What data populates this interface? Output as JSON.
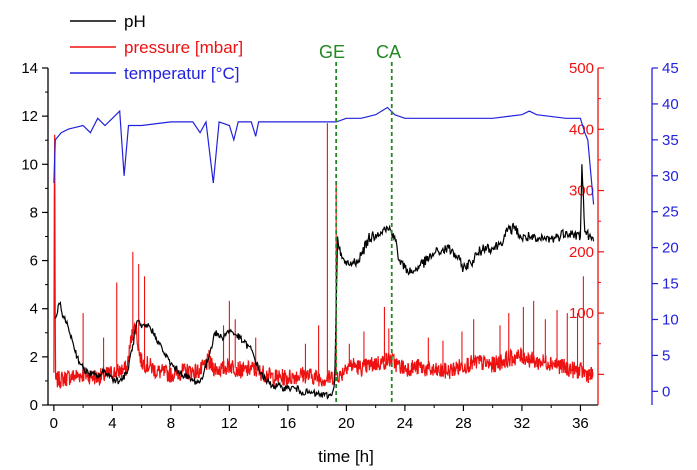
{
  "chart_data": {
    "type": "line",
    "xlabel": "time [h]",
    "xlim": [
      -0.4,
      37.2
    ],
    "x_ticks": [
      "0",
      "4",
      "8",
      "12",
      "16",
      "20",
      "24",
      "28",
      "32",
      "36"
    ],
    "axes": {
      "left": {
        "series": "pH",
        "range": [
          0,
          14
        ],
        "ticks": [
          "0",
          "2",
          "4",
          "6",
          "8",
          "10",
          "12",
          "14"
        ],
        "color": "#000000"
      },
      "right1": {
        "series": "pressure [mbar]",
        "range": [
          -50,
          500
        ],
        "ticks": [
          "0",
          "100",
          "200",
          "300",
          "400",
          "500"
        ],
        "color": "#ee1111"
      },
      "right2": {
        "series": "temperatur [°C]",
        "range": [
          -1.9,
          45
        ],
        "ticks": [
          "0",
          "5",
          "10",
          "15",
          "20",
          "25",
          "30",
          "35",
          "40",
          "45"
        ],
        "color": "#2222dd"
      }
    },
    "legend": {
      "position": "top-left",
      "entries": [
        {
          "label": "pH",
          "color": "#000000"
        },
        {
          "label": "pressure [mbar]",
          "color": "#ee1111"
        },
        {
          "label": "temperatur [°C]",
          "color": "#2222dd"
        }
      ]
    },
    "annotations": [
      {
        "label": "GE",
        "x": 19.3,
        "color": "#228822",
        "style": "dashed-vertical"
      },
      {
        "label": "CA",
        "x": 23.1,
        "color": "#228822",
        "style": "dashed-vertical"
      }
    ],
    "series": [
      {
        "name": "pH",
        "axis": "left",
        "color": "#000000",
        "points": [
          [
            0.1,
            3.6
          ],
          [
            0.4,
            4.2
          ],
          [
            0.7,
            3.6
          ],
          [
            1.0,
            3.2
          ],
          [
            1.3,
            2.6
          ],
          [
            1.6,
            2.0
          ],
          [
            2.0,
            1.5
          ],
          [
            2.4,
            1.3
          ],
          [
            3.0,
            1.2
          ],
          [
            3.5,
            1.4
          ],
          [
            4.0,
            1.1
          ],
          [
            4.5,
            1.0
          ],
          [
            5.0,
            1.3
          ],
          [
            5.4,
            2.5
          ],
          [
            5.7,
            3.5
          ],
          [
            6.0,
            3.2
          ],
          [
            6.5,
            3.3
          ],
          [
            7.0,
            2.8
          ],
          [
            7.5,
            2.2
          ],
          [
            8.0,
            1.7
          ],
          [
            8.5,
            1.4
          ],
          [
            9.0,
            1.2
          ],
          [
            9.5,
            1.0
          ],
          [
            10.0,
            0.95
          ],
          [
            10.5,
            1.8
          ],
          [
            11.0,
            3.0
          ],
          [
            11.5,
            2.8
          ],
          [
            12.0,
            3.1
          ],
          [
            12.5,
            2.9
          ],
          [
            13.0,
            2.6
          ],
          [
            13.5,
            2.3
          ],
          [
            14.0,
            1.5
          ],
          [
            14.5,
            1.0
          ],
          [
            15.0,
            0.8
          ],
          [
            15.5,
            0.75
          ],
          [
            16.0,
            0.7
          ],
          [
            16.5,
            0.7
          ],
          [
            17.0,
            0.55
          ],
          [
            17.5,
            0.5
          ],
          [
            18.0,
            0.45
          ],
          [
            18.5,
            0.4
          ],
          [
            19.0,
            0.4
          ],
          [
            19.2,
            1.0
          ],
          [
            19.4,
            7.0
          ],
          [
            19.6,
            6.2
          ],
          [
            20.0,
            5.8
          ],
          [
            20.5,
            5.9
          ],
          [
            21.0,
            6.2
          ],
          [
            21.5,
            6.9
          ],
          [
            22.0,
            7.1
          ],
          [
            22.5,
            7.3
          ],
          [
            23.0,
            7.3
          ],
          [
            23.3,
            7.0
          ],
          [
            23.6,
            6.0
          ],
          [
            24.0,
            5.7
          ],
          [
            24.5,
            5.5
          ],
          [
            25.0,
            5.8
          ],
          [
            25.5,
            6.0
          ],
          [
            26.0,
            6.3
          ],
          [
            26.5,
            6.4
          ],
          [
            27.0,
            6.5
          ],
          [
            27.5,
            6.2
          ],
          [
            28.0,
            5.7
          ],
          [
            28.5,
            5.9
          ],
          [
            29.0,
            6.3
          ],
          [
            29.5,
            6.6
          ],
          [
            30.0,
            6.5
          ],
          [
            30.5,
            6.7
          ],
          [
            31.0,
            7.2
          ],
          [
            31.5,
            7.4
          ],
          [
            32.0,
            6.9
          ],
          [
            32.5,
            7.0
          ],
          [
            33.0,
            6.8
          ],
          [
            33.5,
            6.9
          ],
          [
            34.0,
            6.9
          ],
          [
            34.5,
            7.0
          ],
          [
            35.0,
            7.2
          ],
          [
            35.5,
            7.1
          ],
          [
            36.0,
            7.0
          ],
          [
            36.1,
            10.0
          ],
          [
            36.3,
            7.2
          ],
          [
            36.6,
            7.0
          ],
          [
            36.9,
            6.8
          ]
        ]
      },
      {
        "name": "pressure [mbar]",
        "axis": "right1",
        "color": "#ee1111",
        "points": [
          [
            0.0,
            0
          ],
          [
            0.05,
            490
          ],
          [
            0.1,
            -10
          ],
          [
            0.5,
            -8
          ],
          [
            1.0,
            -5
          ],
          [
            2.0,
            0
          ],
          [
            3.0,
            -5
          ],
          [
            4.0,
            2
          ],
          [
            4.5,
            5
          ],
          [
            5.0,
            10
          ],
          [
            5.3,
            60
          ],
          [
            5.6,
            80
          ],
          [
            5.8,
            40
          ],
          [
            6.0,
            20
          ],
          [
            6.5,
            15
          ],
          [
            7.0,
            5
          ],
          [
            8.0,
            0
          ],
          [
            9.0,
            5
          ],
          [
            10.0,
            5
          ],
          [
            10.5,
            20
          ],
          [
            11.0,
            10
          ],
          [
            11.5,
            8
          ],
          [
            12.0,
            15
          ],
          [
            12.5,
            10
          ],
          [
            13.0,
            5
          ],
          [
            13.5,
            10
          ],
          [
            14.0,
            5
          ],
          [
            15.0,
            -5
          ],
          [
            16.0,
            -5
          ],
          [
            17.0,
            0
          ],
          [
            18.0,
            -5
          ],
          [
            18.5,
            -8
          ],
          [
            19.0,
            -5
          ],
          [
            19.3,
            2
          ],
          [
            19.6,
            -3
          ],
          [
            20.0,
            15
          ],
          [
            20.5,
            15
          ],
          [
            21.0,
            10
          ],
          [
            22.0,
            18
          ],
          [
            22.5,
            20
          ],
          [
            23.0,
            25
          ],
          [
            23.5,
            15
          ],
          [
            24.0,
            10
          ],
          [
            25.0,
            12
          ],
          [
            26.0,
            5
          ],
          [
            27.0,
            5
          ],
          [
            28.0,
            15
          ],
          [
            29.0,
            20
          ],
          [
            30.0,
            15
          ],
          [
            31.0,
            25
          ],
          [
            32.0,
            30
          ],
          [
            33.0,
            20
          ],
          [
            34.0,
            20
          ],
          [
            35.0,
            10
          ],
          [
            36.0,
            5
          ],
          [
            36.5,
            0
          ],
          [
            36.9,
            -2
          ]
        ],
        "spikes": [
          [
            0.05,
            490
          ],
          [
            5.4,
            200
          ],
          [
            5.8,
            180
          ],
          [
            6.2,
            160
          ],
          [
            4.3,
            150
          ],
          [
            2.0,
            100
          ],
          [
            3.4,
            60
          ],
          [
            11.6,
            80
          ],
          [
            12.0,
            120
          ],
          [
            12.4,
            90
          ],
          [
            10.6,
            40
          ],
          [
            13.8,
            60
          ],
          [
            17.2,
            50
          ],
          [
            18.1,
            80
          ],
          [
            18.7,
            410
          ],
          [
            19.3,
            310
          ],
          [
            20.2,
            50
          ],
          [
            21.2,
            70
          ],
          [
            22.6,
            110
          ],
          [
            22.9,
            75
          ],
          [
            25.6,
            60
          ],
          [
            26.6,
            55
          ],
          [
            27.9,
            70
          ],
          [
            28.7,
            90
          ],
          [
            30.5,
            80
          ],
          [
            31.1,
            100
          ],
          [
            32.1,
            110
          ],
          [
            32.8,
            120
          ],
          [
            33.6,
            90
          ],
          [
            34.4,
            105
          ],
          [
            35.1,
            100
          ],
          [
            35.8,
            100
          ],
          [
            36.2,
            160
          ]
        ]
      },
      {
        "name": "temperatur [°C]",
        "axis": "right2",
        "color": "#2222dd",
        "points": [
          [
            0.0,
            29
          ],
          [
            0.1,
            35
          ],
          [
            0.5,
            36
          ],
          [
            1.0,
            36.5
          ],
          [
            2.0,
            37
          ],
          [
            2.5,
            36
          ],
          [
            3.0,
            38
          ],
          [
            3.5,
            37
          ],
          [
            4.0,
            38
          ],
          [
            4.5,
            39
          ],
          [
            4.8,
            30
          ],
          [
            5.1,
            37
          ],
          [
            6.0,
            37
          ],
          [
            8.0,
            37.5
          ],
          [
            9.5,
            37.5
          ],
          [
            10.0,
            36
          ],
          [
            10.4,
            37.5
          ],
          [
            10.9,
            29
          ],
          [
            11.3,
            37.5
          ],
          [
            12.0,
            37
          ],
          [
            12.3,
            35
          ],
          [
            12.6,
            37.5
          ],
          [
            13.5,
            37.5
          ],
          [
            13.8,
            35.5
          ],
          [
            14.0,
            37.5
          ],
          [
            16.0,
            37.5
          ],
          [
            18.0,
            37.5
          ],
          [
            19.3,
            37.5
          ],
          [
            20.0,
            38
          ],
          [
            21.0,
            38
          ],
          [
            22.0,
            38.5
          ],
          [
            22.8,
            39.5
          ],
          [
            23.3,
            38.5
          ],
          [
            24.0,
            38
          ],
          [
            26.0,
            38
          ],
          [
            28.0,
            38
          ],
          [
            30.0,
            38
          ],
          [
            32.0,
            38.5
          ],
          [
            32.5,
            39
          ],
          [
            33.0,
            38.5
          ],
          [
            35.0,
            38
          ],
          [
            36.0,
            38
          ],
          [
            36.3,
            36
          ],
          [
            36.5,
            35
          ],
          [
            36.9,
            26
          ]
        ]
      }
    ]
  }
}
